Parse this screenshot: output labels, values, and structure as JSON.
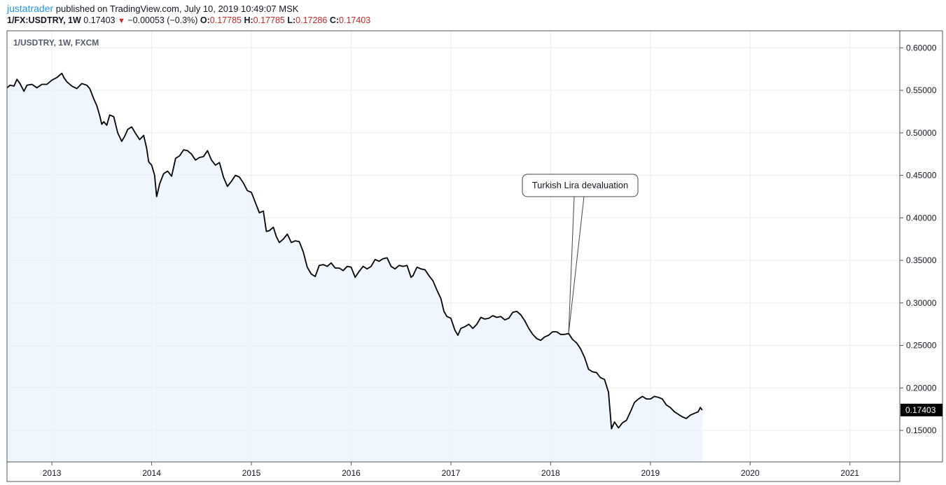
{
  "header": {
    "author": "justatrader",
    "published": "published on TradingView.com, July 10, 2019 10:49:07 MSK",
    "symbol": "1/FX:USDTRY, 1W",
    "close": "0.17403",
    "change_arrow": "▼",
    "change": "−0.00053 (−0.3%)",
    "o_label": "O:",
    "o_value": "0.17785",
    "h_label": "H:",
    "h_value": "0.17785",
    "l_label": "L:",
    "l_value": "0.17286",
    "c_label": "C:",
    "c_value": "0.17403"
  },
  "colors": {
    "line": "#000000",
    "area_fill": "#eaf3fd",
    "grid": "#e9eef3",
    "negative": "#c62828",
    "author": "#2196f3"
  },
  "chart_data": {
    "type": "area",
    "legend": "1/USDTRY, 1W, FXCM",
    "annotation": "Turkish Lira devaluation",
    "annotation_x": 2018.18,
    "annotation_y": 0.264,
    "last_value": 0.17403,
    "last_value_label": "0.17403",
    "xlim": [
      2012.55,
      2021.5
    ],
    "ylim": [
      0.113,
      0.62
    ],
    "x_ticks": [
      2013,
      2014,
      2015,
      2016,
      2017,
      2018,
      2019,
      2020,
      2021
    ],
    "x_tick_labels": [
      "2013",
      "2014",
      "2015",
      "2016",
      "2017",
      "2018",
      "2019",
      "2020",
      "2021"
    ],
    "y_ticks": [
      0.15,
      0.2,
      0.25,
      0.3,
      0.35,
      0.4,
      0.45,
      0.5,
      0.55,
      0.6
    ],
    "y_tick_labels": [
      "0.15000",
      "0.20000",
      "0.25000",
      "0.30000",
      "0.35000",
      "0.40000",
      "0.45000",
      "0.50000",
      "0.55000",
      "0.60000"
    ],
    "grid": true,
    "points": [
      [
        2012.55,
        0.553
      ],
      [
        2012.58,
        0.556
      ],
      [
        2012.62,
        0.555
      ],
      [
        2012.65,
        0.563
      ],
      [
        2012.68,
        0.558
      ],
      [
        2012.72,
        0.549
      ],
      [
        2012.75,
        0.556
      ],
      [
        2012.8,
        0.557
      ],
      [
        2012.85,
        0.553
      ],
      [
        2012.9,
        0.557
      ],
      [
        2012.95,
        0.557
      ],
      [
        2013.0,
        0.562
      ],
      [
        2013.05,
        0.565
      ],
      [
        2013.1,
        0.57
      ],
      [
        2013.12,
        0.565
      ],
      [
        2013.15,
        0.56
      ],
      [
        2013.2,
        0.555
      ],
      [
        2013.25,
        0.552
      ],
      [
        2013.3,
        0.558
      ],
      [
        2013.35,
        0.556
      ],
      [
        2013.38,
        0.552
      ],
      [
        2013.42,
        0.54
      ],
      [
        2013.45,
        0.532
      ],
      [
        2013.48,
        0.52
      ],
      [
        2013.5,
        0.51
      ],
      [
        2013.52,
        0.513
      ],
      [
        2013.55,
        0.509
      ],
      [
        2013.58,
        0.521
      ],
      [
        2013.62,
        0.519
      ],
      [
        2013.66,
        0.5
      ],
      [
        2013.7,
        0.49
      ],
      [
        2013.73,
        0.496
      ],
      [
        2013.76,
        0.504
      ],
      [
        2013.8,
        0.507
      ],
      [
        2013.84,
        0.499
      ],
      [
        2013.88,
        0.492
      ],
      [
        2013.92,
        0.497
      ],
      [
        2013.95,
        0.482
      ],
      [
        2013.97,
        0.466
      ],
      [
        2014.0,
        0.462
      ],
      [
        2014.03,
        0.45
      ],
      [
        2014.05,
        0.425
      ],
      [
        2014.08,
        0.44
      ],
      [
        2014.12,
        0.452
      ],
      [
        2014.16,
        0.455
      ],
      [
        2014.2,
        0.449
      ],
      [
        2014.24,
        0.47
      ],
      [
        2014.28,
        0.473
      ],
      [
        2014.32,
        0.48
      ],
      [
        2014.36,
        0.479
      ],
      [
        2014.4,
        0.475
      ],
      [
        2014.44,
        0.468
      ],
      [
        2014.48,
        0.471
      ],
      [
        2014.52,
        0.472
      ],
      [
        2014.56,
        0.479
      ],
      [
        2014.6,
        0.468
      ],
      [
        2014.64,
        0.462
      ],
      [
        2014.68,
        0.465
      ],
      [
        2014.72,
        0.448
      ],
      [
        2014.76,
        0.437
      ],
      [
        2014.8,
        0.443
      ],
      [
        2014.84,
        0.45
      ],
      [
        2014.88,
        0.448
      ],
      [
        2014.92,
        0.441
      ],
      [
        2014.96,
        0.432
      ],
      [
        2015.0,
        0.43
      ],
      [
        2015.04,
        0.418
      ],
      [
        2015.08,
        0.406
      ],
      [
        2015.12,
        0.408
      ],
      [
        2015.15,
        0.384
      ],
      [
        2015.18,
        0.385
      ],
      [
        2015.22,
        0.389
      ],
      [
        2015.25,
        0.378
      ],
      [
        2015.28,
        0.371
      ],
      [
        2015.32,
        0.375
      ],
      [
        2015.36,
        0.381
      ],
      [
        2015.4,
        0.371
      ],
      [
        2015.44,
        0.373
      ],
      [
        2015.48,
        0.372
      ],
      [
        2015.52,
        0.36
      ],
      [
        2015.56,
        0.342
      ],
      [
        2015.6,
        0.334
      ],
      [
        2015.64,
        0.331
      ],
      [
        2015.68,
        0.344
      ],
      [
        2015.72,
        0.345
      ],
      [
        2015.76,
        0.343
      ],
      [
        2015.8,
        0.347
      ],
      [
        2015.84,
        0.341
      ],
      [
        2015.88,
        0.341
      ],
      [
        2015.92,
        0.338
      ],
      [
        2015.96,
        0.343
      ],
      [
        2016.0,
        0.342
      ],
      [
        2016.04,
        0.33
      ],
      [
        2016.08,
        0.337
      ],
      [
        2016.12,
        0.343
      ],
      [
        2016.16,
        0.34
      ],
      [
        2016.2,
        0.343
      ],
      [
        2016.24,
        0.351
      ],
      [
        2016.28,
        0.349
      ],
      [
        2016.32,
        0.352
      ],
      [
        2016.36,
        0.353
      ],
      [
        2016.4,
        0.343
      ],
      [
        2016.44,
        0.34
      ],
      [
        2016.48,
        0.344
      ],
      [
        2016.52,
        0.343
      ],
      [
        2016.56,
        0.344
      ],
      [
        2016.6,
        0.33
      ],
      [
        2016.62,
        0.332
      ],
      [
        2016.66,
        0.342
      ],
      [
        2016.7,
        0.34
      ],
      [
        2016.74,
        0.339
      ],
      [
        2016.78,
        0.332
      ],
      [
        2016.82,
        0.326
      ],
      [
        2016.86,
        0.315
      ],
      [
        2016.9,
        0.305
      ],
      [
        2016.93,
        0.29
      ],
      [
        2016.96,
        0.284
      ],
      [
        2017.0,
        0.282
      ],
      [
        2017.04,
        0.268
      ],
      [
        2017.07,
        0.262
      ],
      [
        2017.1,
        0.27
      ],
      [
        2017.14,
        0.272
      ],
      [
        2017.18,
        0.275
      ],
      [
        2017.22,
        0.27
      ],
      [
        2017.26,
        0.275
      ],
      [
        2017.3,
        0.283
      ],
      [
        2017.34,
        0.281
      ],
      [
        2017.38,
        0.282
      ],
      [
        2017.42,
        0.285
      ],
      [
        2017.46,
        0.283
      ],
      [
        2017.5,
        0.284
      ],
      [
        2017.54,
        0.28
      ],
      [
        2017.58,
        0.282
      ],
      [
        2017.62,
        0.289
      ],
      [
        2017.66,
        0.29
      ],
      [
        2017.7,
        0.286
      ],
      [
        2017.74,
        0.279
      ],
      [
        2017.78,
        0.27
      ],
      [
        2017.82,
        0.263
      ],
      [
        2017.86,
        0.258
      ],
      [
        2017.9,
        0.256
      ],
      [
        2017.94,
        0.26
      ],
      [
        2017.98,
        0.262
      ],
      [
        2018.02,
        0.266
      ],
      [
        2018.06,
        0.266
      ],
      [
        2018.1,
        0.263
      ],
      [
        2018.14,
        0.263
      ],
      [
        2018.18,
        0.264
      ],
      [
        2018.22,
        0.257
      ],
      [
        2018.26,
        0.253
      ],
      [
        2018.3,
        0.246
      ],
      [
        2018.34,
        0.236
      ],
      [
        2018.38,
        0.222
      ],
      [
        2018.42,
        0.219
      ],
      [
        2018.46,
        0.218
      ],
      [
        2018.5,
        0.212
      ],
      [
        2018.54,
        0.21
      ],
      [
        2018.58,
        0.195
      ],
      [
        2018.61,
        0.152
      ],
      [
        2018.64,
        0.16
      ],
      [
        2018.68,
        0.153
      ],
      [
        2018.72,
        0.159
      ],
      [
        2018.76,
        0.162
      ],
      [
        2018.8,
        0.172
      ],
      [
        2018.84,
        0.183
      ],
      [
        2018.88,
        0.187
      ],
      [
        2018.92,
        0.19
      ],
      [
        2018.96,
        0.187
      ],
      [
        2019.0,
        0.187
      ],
      [
        2019.04,
        0.19
      ],
      [
        2019.08,
        0.189
      ],
      [
        2019.12,
        0.187
      ],
      [
        2019.16,
        0.18
      ],
      [
        2019.2,
        0.177
      ],
      [
        2019.24,
        0.172
      ],
      [
        2019.28,
        0.169
      ],
      [
        2019.32,
        0.166
      ],
      [
        2019.36,
        0.164
      ],
      [
        2019.4,
        0.168
      ],
      [
        2019.44,
        0.17
      ],
      [
        2019.48,
        0.172
      ],
      [
        2019.5,
        0.177
      ],
      [
        2019.52,
        0.174
      ]
    ]
  }
}
